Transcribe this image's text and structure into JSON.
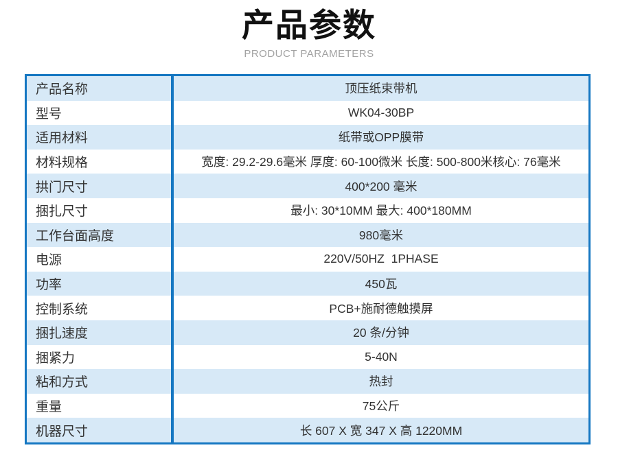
{
  "header": {
    "title": "产品参数",
    "subtitle": "PRODUCT PARAMETERS"
  },
  "table": {
    "rows": [
      {
        "name": "产品名称",
        "value": "顶压纸束带机"
      },
      {
        "name": "型号",
        "value": "WK04-30BP"
      },
      {
        "name": "适用材料",
        "value": "纸带或OPP膜带"
      },
      {
        "name": "材料规格",
        "value": "宽度: 29.2-29.6毫米 厚度: 60-100微米 长度: 500-800米核心: 76毫米"
      },
      {
        "name": "拱门尺寸",
        "value": "400*200 毫米"
      },
      {
        "name": "捆扎尺寸",
        "value": "最小: 30*10MM 最大: 400*180MM"
      },
      {
        "name": "工作台面高度",
        "value": "980毫米"
      },
      {
        "name": "电源",
        "value": "220V/50HZ  1PHASE"
      },
      {
        "name": "功率",
        "value": "450瓦"
      },
      {
        "name": "控制系统",
        "value": "PCB+施耐德触摸屏"
      },
      {
        "name": "捆扎速度",
        "value": "20 条/分钟"
      },
      {
        "name": "捆紧力",
        "value": "5-40N"
      },
      {
        "name": "粘和方式",
        "value": "热封"
      },
      {
        "name": "重量",
        "value": "75公斤"
      },
      {
        "name": "机器尺寸",
        "value": "长 607 X 宽 347 X 高 1220MM"
      }
    ]
  },
  "colors": {
    "border_blue": "#1577c2",
    "stripe_blue": "#d7e9f7",
    "text": "#333333",
    "subtitle_gray": "#a2a2a2"
  }
}
